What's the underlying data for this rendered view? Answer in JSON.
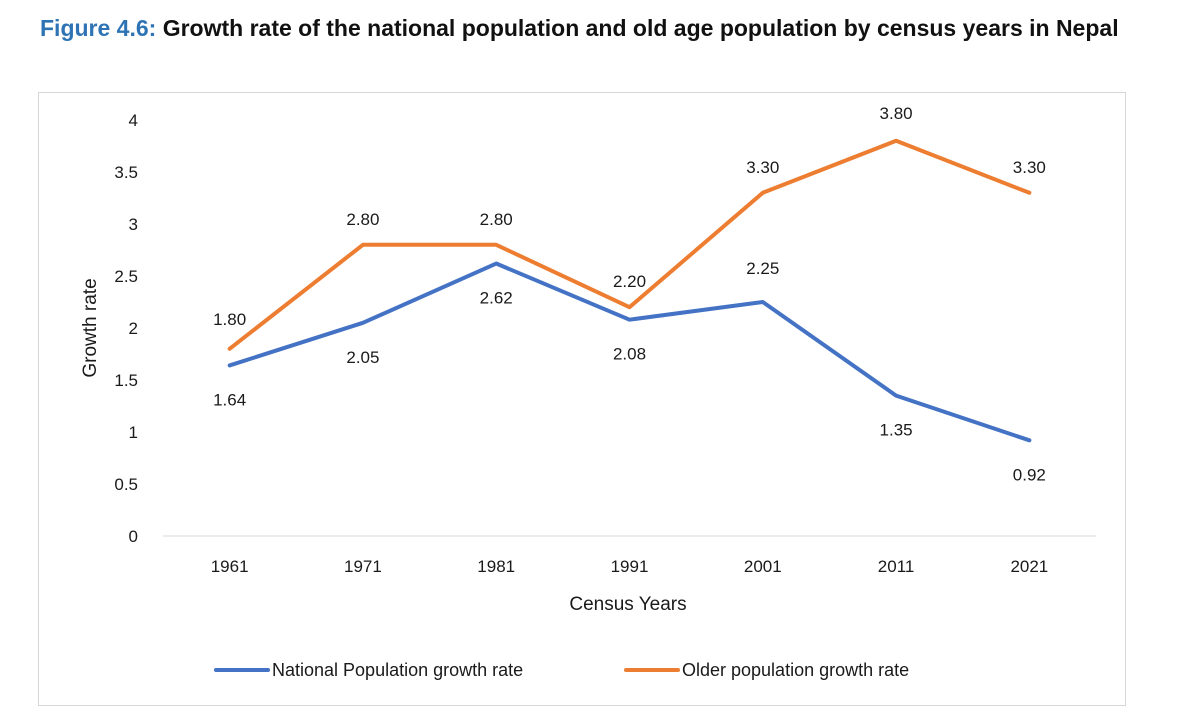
{
  "caption": {
    "label": "Figure 4.6:",
    "text": "Growth rate of the national population and old age population by census years in Nepal"
  },
  "chart_data": {
    "type": "line",
    "title": "",
    "xlabel": "Census Years",
    "ylabel": "Growth rate",
    "categories": [
      "1961",
      "1971",
      "1981",
      "1991",
      "2001",
      "2011",
      "2021"
    ],
    "ylim": [
      0,
      4
    ],
    "yticks": [
      0,
      0.5,
      1,
      1.5,
      2,
      2.5,
      3,
      3.5,
      4
    ],
    "ytick_labels": [
      "0",
      "0.5",
      "1",
      "1.5",
      "2",
      "2.5",
      "3",
      "3.5",
      "4"
    ],
    "grid": false,
    "legend_position": "bottom",
    "series": [
      {
        "name": "National Population growth rate",
        "color": "#4472c4",
        "values": [
          1.64,
          2.05,
          2.62,
          2.08,
          2.25,
          1.35,
          0.92
        ],
        "labels": [
          "1.64",
          "2.05",
          "2.62",
          "2.08",
          "2.25",
          "1.35",
          "0.92"
        ]
      },
      {
        "name": "Older population growth rate",
        "color": "#ed7d31",
        "values": [
          1.8,
          2.8,
          2.8,
          2.2,
          3.3,
          3.8,
          3.3
        ],
        "labels": [
          "1.80",
          "2.80",
          "2.80",
          "2.20",
          "3.30",
          "3.80",
          "3.30"
        ]
      }
    ]
  }
}
